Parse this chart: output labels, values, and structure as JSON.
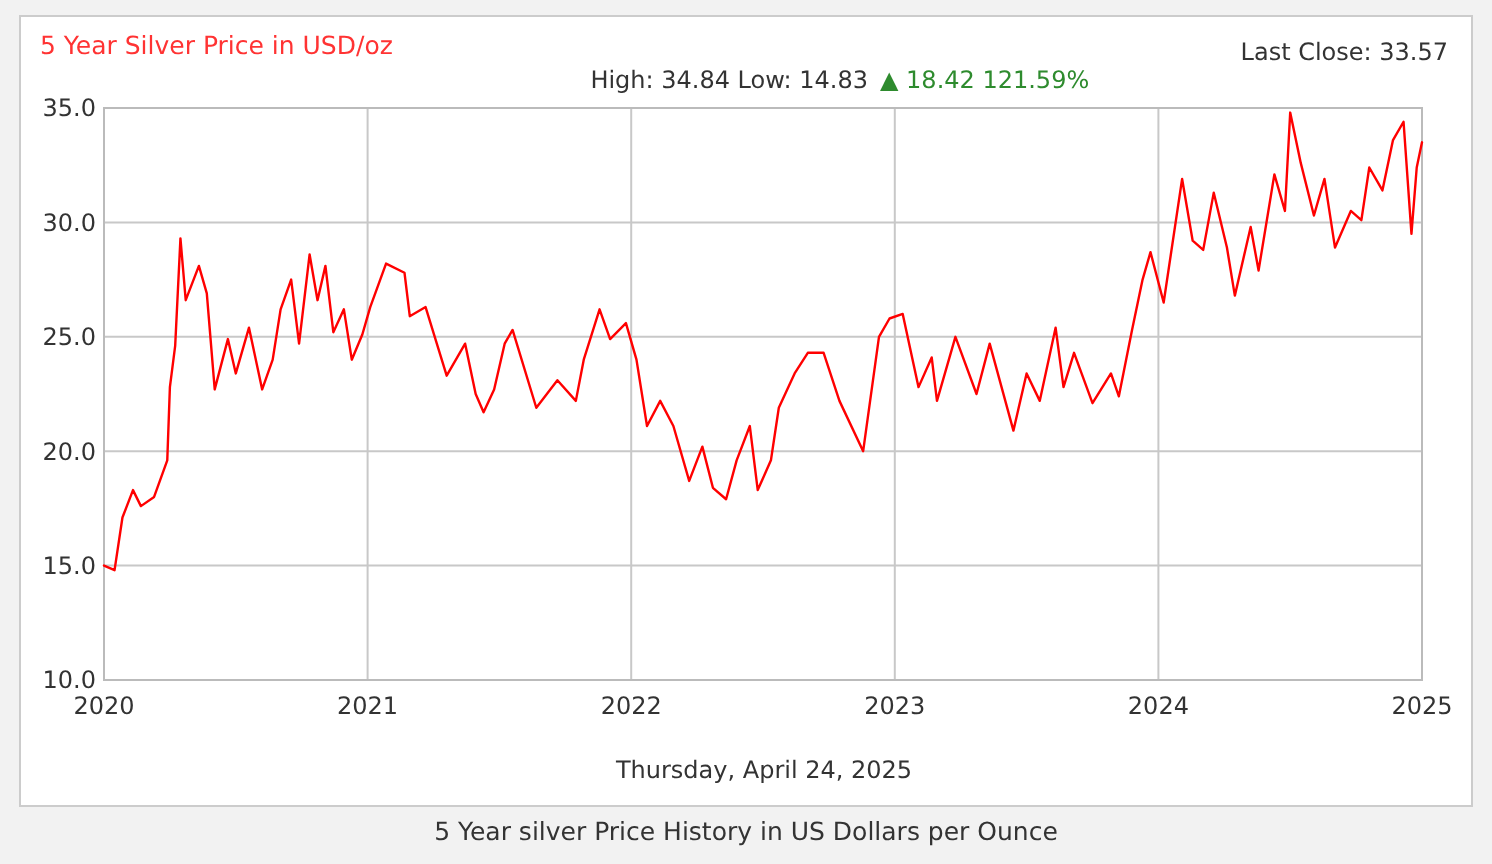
{
  "chart_data": {
    "type": "line",
    "title": "5 Year Silver Price in USD/oz",
    "subtitle": "High: 34.84 Low: 14.83",
    "annotations": [
      "▲ 18.42 121.59%",
      "Last Close: 33.57",
      "Thursday, April 24, 2025",
      "5 Year silver Price History in US Dollars per Ounce"
    ],
    "xlim": [
      2020,
      2025
    ],
    "xticks": [
      2020,
      2021,
      2022,
      2023,
      2024,
      2025
    ],
    "ylim": [
      10,
      35
    ],
    "yticks": [
      {
        "value": 10,
        "label": "10.0"
      },
      {
        "value": 15,
        "label": "15.0"
      },
      {
        "value": 20,
        "label": "20.0"
      },
      {
        "value": 25,
        "label": "25.0"
      },
      {
        "value": 30,
        "label": "30.0"
      },
      {
        "value": 35,
        "label": "35.0"
      }
    ],
    "grid": true,
    "marker": "none",
    "line_style": "solid",
    "series": [
      {
        "color": "#ff0000",
        "x": [
          2020.0,
          2020.04,
          2020.07,
          2020.11,
          2020.14,
          2020.19,
          2020.24,
          2020.25,
          2020.27,
          2020.29,
          2020.31,
          2020.36,
          2020.39,
          2020.42,
          2020.47,
          2020.5,
          2020.55,
          2020.6,
          2020.64,
          2020.67,
          2020.71,
          2020.74,
          2020.78,
          2020.81,
          2020.84,
          2020.87,
          2020.91,
          2020.94,
          2020.98,
          2021.01,
          2021.07,
          2021.14,
          2021.16,
          2021.22,
          2021.3,
          2021.37,
          2021.41,
          2021.44,
          2021.48,
          2021.52,
          2021.55,
          2021.64,
          2021.72,
          2021.79,
          2021.82,
          2021.88,
          2021.92,
          2021.98,
          2022.02,
          2022.06,
          2022.11,
          2022.16,
          2022.22,
          2022.27,
          2022.31,
          2022.36,
          2022.4,
          2022.45,
          2022.48,
          2022.53,
          2022.56,
          2022.62,
          2022.67,
          2022.73,
          2022.79,
          2022.88,
          2022.94,
          2022.98,
          2023.03,
          2023.09,
          2023.14,
          2023.16,
          2023.23,
          2023.31,
          2023.36,
          2023.45,
          2023.5,
          2023.55,
          2023.61,
          2023.64,
          2023.68,
          2023.75,
          2023.82,
          2023.85,
          2023.9,
          2023.94,
          2023.97,
          2024.02,
          2024.09,
          2024.13,
          2024.17,
          2024.21,
          2024.26,
          2024.29,
          2024.35,
          2024.38,
          2024.44,
          2024.48,
          2024.5,
          2024.54,
          2024.59,
          2024.63,
          2024.67,
          2024.73,
          2024.77,
          2024.8,
          2024.85,
          2024.89,
          2024.93,
          2024.96,
          2024.98,
          2025.0
        ],
        "values": [
          15.0,
          14.8,
          17.1,
          18.3,
          17.6,
          18.0,
          19.6,
          22.8,
          24.6,
          29.3,
          26.6,
          28.1,
          26.9,
          22.7,
          24.9,
          23.4,
          25.4,
          22.7,
          24.0,
          26.2,
          27.5,
          24.7,
          28.6,
          26.6,
          28.1,
          25.2,
          26.2,
          24.0,
          25.1,
          26.3,
          28.2,
          27.8,
          25.9,
          26.3,
          23.3,
          24.7,
          22.5,
          21.7,
          22.7,
          24.7,
          25.3,
          21.9,
          23.1,
          22.2,
          24.0,
          26.2,
          24.9,
          25.6,
          24.0,
          21.1,
          22.2,
          21.1,
          18.7,
          20.2,
          18.4,
          17.9,
          19.6,
          21.1,
          18.3,
          19.6,
          21.9,
          23.4,
          24.3,
          24.3,
          22.2,
          20.0,
          25.0,
          25.8,
          26.0,
          22.8,
          24.1,
          22.2,
          25.0,
          22.5,
          24.7,
          20.9,
          23.4,
          22.2,
          25.4,
          22.8,
          24.3,
          22.1,
          23.4,
          22.4,
          25.3,
          27.5,
          28.7,
          26.5,
          31.9,
          29.2,
          28.8,
          31.3,
          28.9,
          26.8,
          29.8,
          27.9,
          32.1,
          30.5,
          34.8,
          32.6,
          30.3,
          31.9,
          28.9,
          30.5,
          30.1,
          32.4,
          31.4,
          33.6,
          34.4,
          29.5,
          32.4,
          33.5
        ]
      }
    ]
  }
}
